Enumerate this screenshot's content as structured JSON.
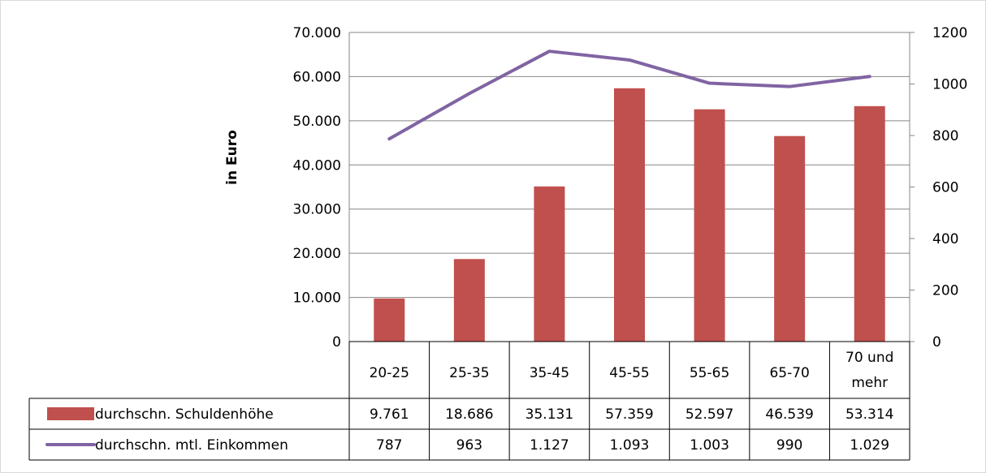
{
  "chart_data": {
    "type": "bar",
    "categories": [
      [
        "20-25"
      ],
      [
        "25-35"
      ],
      [
        "35-45"
      ],
      [
        "45-55"
      ],
      [
        "55-65"
      ],
      [
        "65-70"
      ],
      [
        "70 und",
        "mehr"
      ]
    ],
    "ylabel": "in Euro",
    "ylim": [
      0,
      70000
    ],
    "y2lim": [
      0,
      1200
    ],
    "y_ticks": [
      "0",
      "10.000",
      "20.000",
      "30.000",
      "40.000",
      "50.000",
      "60.000",
      "70.000"
    ],
    "y2_ticks": [
      "0",
      "200",
      "400",
      "600",
      "800",
      "1000",
      "1200"
    ],
    "grid": true,
    "legend": "data table below chart",
    "series": [
      {
        "name": "durchschn. Schuldenhöhe",
        "type": "bar",
        "axis": "left",
        "color": "#c0504d",
        "values": [
          9761,
          18686,
          35131,
          57359,
          52597,
          46539,
          53314
        ],
        "labels": [
          "9.761",
          "18.686",
          "35.131",
          "57.359",
          "52.597",
          "46.539",
          "53.314"
        ]
      },
      {
        "name": "durchschn. mtl. Einkommen",
        "type": "line",
        "axis": "right",
        "color": "#8064a2",
        "values": [
          787,
          963,
          1127,
          1093,
          1003,
          990,
          1029
        ],
        "labels": [
          "787",
          "963",
          "1.127",
          "1.093",
          "1.003",
          "990",
          "1.029"
        ]
      }
    ]
  }
}
